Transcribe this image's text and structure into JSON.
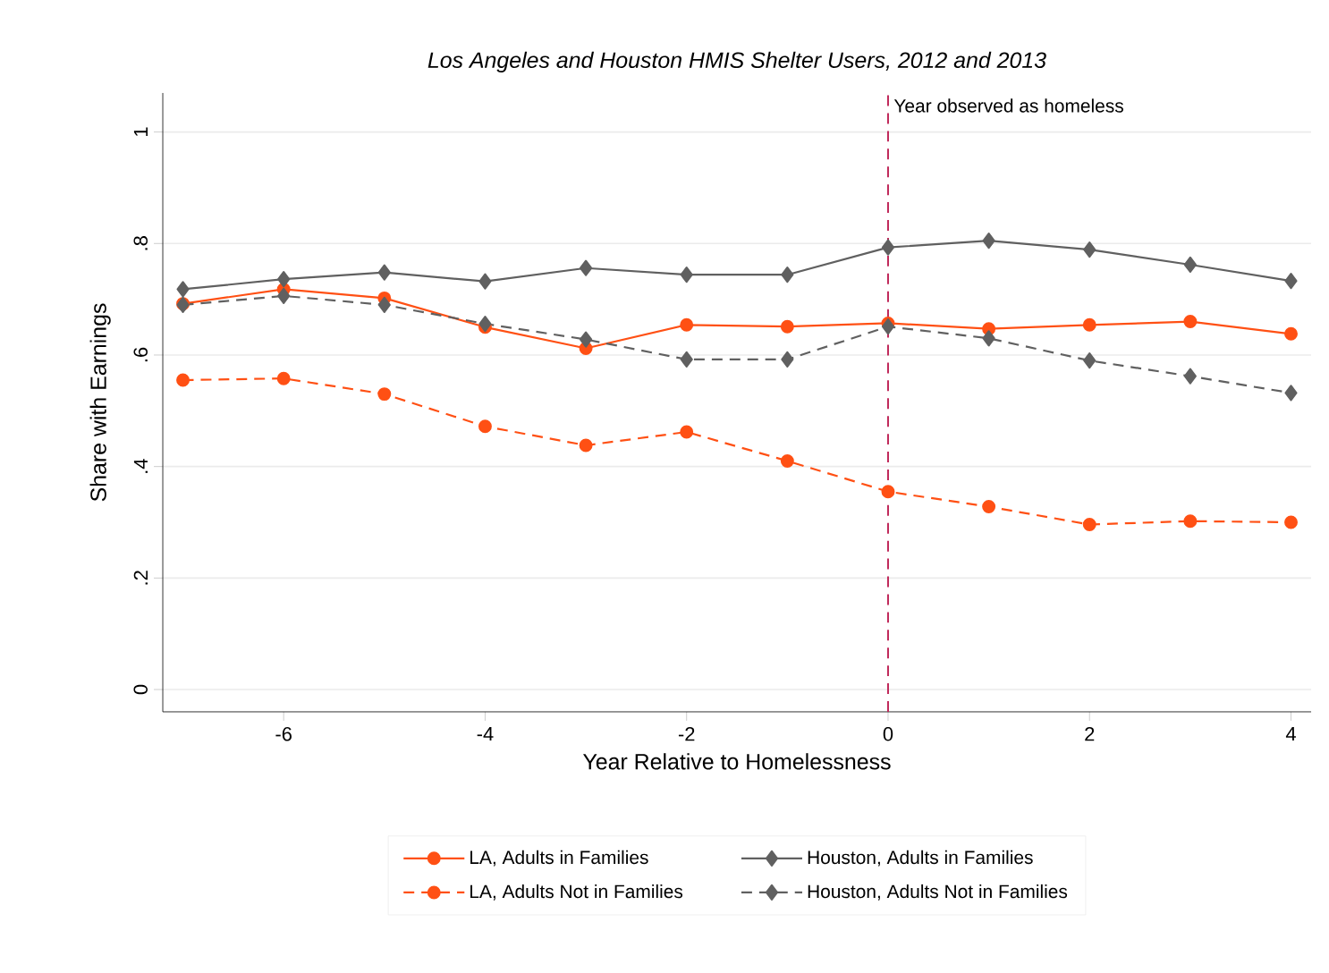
{
  "chart_data": {
    "type": "line",
    "title": "Los Angeles and Houston HMIS Shelter Users, 2012 and 2013",
    "xlabel": "Year Relative to Homelessness",
    "ylabel": "Share with Earnings",
    "x": [
      -7,
      -6,
      -5,
      -4,
      -3,
      -2,
      -1,
      0,
      1,
      2,
      3,
      4
    ],
    "series": [
      {
        "name": "LA, Adults in Families",
        "color": "#ff5014",
        "marker": "circle",
        "line_style": "solid",
        "values": [
          0.692,
          0.718,
          0.702,
          0.65,
          0.612,
          0.654,
          0.651,
          0.657,
          0.647,
          0.654,
          0.66,
          0.638
        ]
      },
      {
        "name": "LA, Adults Not in Families",
        "color": "#ff5014",
        "marker": "circle",
        "line_style": "dashed",
        "values": [
          0.555,
          0.558,
          0.53,
          0.472,
          0.438,
          0.462,
          0.41,
          0.355,
          0.328,
          0.296,
          0.302,
          0.3
        ]
      },
      {
        "name": "Houston, Adults in Families",
        "color": "#606060",
        "marker": "diamond",
        "line_style": "solid",
        "values": [
          0.718,
          0.736,
          0.748,
          0.732,
          0.756,
          0.744,
          0.744,
          0.793,
          0.805,
          0.789,
          0.762,
          0.733
        ]
      },
      {
        "name": "Houston, Adults Not in Families",
        "color": "#606060",
        "marker": "diamond",
        "line_style": "dashed",
        "values": [
          0.69,
          0.706,
          0.69,
          0.656,
          0.628,
          0.592,
          0.592,
          0.651,
          0.63,
          0.59,
          0.562,
          0.532
        ]
      }
    ],
    "xlim": [
      -7.2,
      4.2
    ],
    "xticks": [
      -6,
      -4,
      -2,
      0,
      2,
      4
    ],
    "ylim": [
      -0.04,
      1.07
    ],
    "yticks": [
      {
        "value": 0,
        "label": "0"
      },
      {
        "value": 0.2,
        "label": ".2"
      },
      {
        "value": 0.4,
        "label": ".4"
      },
      {
        "value": 0.6,
        "label": ".6"
      },
      {
        "value": 0.8,
        "label": ".8"
      },
      {
        "value": 1,
        "label": "1"
      }
    ],
    "grid": "y",
    "legend": "bottom",
    "ref_lines": [
      {
        "axis": "x",
        "value": 0,
        "label": "Year observed as homeless",
        "color": "#c0285a",
        "line_style": "dashed"
      }
    ]
  }
}
